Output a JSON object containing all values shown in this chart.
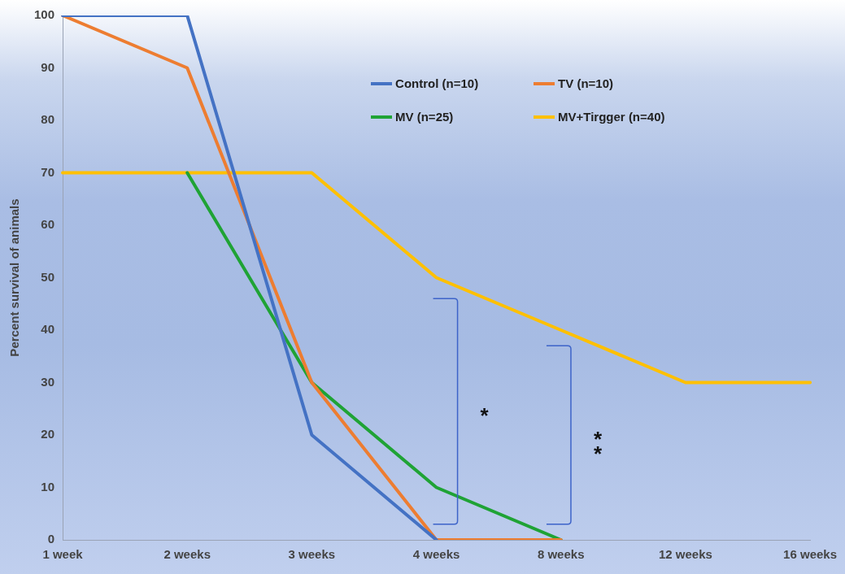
{
  "chart_data": {
    "type": "line",
    "ylabel": "Percent survival of animals",
    "categories": [
      "1 week",
      "2 weeks",
      "3 weeks",
      "4 weeks",
      "8 weeks",
      "12 weeks",
      "16 weeks"
    ],
    "series": [
      {
        "name": "Control (n=10)",
        "color": "#4472c4",
        "values": [
          100,
          100,
          20,
          0,
          null,
          null,
          null
        ]
      },
      {
        "name": "TV (n=10)",
        "color": "#ed7d31",
        "values": [
          100,
          90,
          30,
          0,
          0,
          null,
          null
        ]
      },
      {
        "name": "MV (n=25)",
        "color": "#1fa335",
        "values": [
          null,
          70,
          30,
          10,
          0,
          null,
          null
        ]
      },
      {
        "name": "MV+Tirgger (n=40)",
        "color": "#ffc000",
        "values": [
          70,
          70,
          70,
          50,
          40,
          30,
          30
        ]
      }
    ],
    "ylim": [
      0,
      100
    ],
    "yticks": [
      0,
      10,
      20,
      30,
      40,
      50,
      60,
      70,
      80,
      90,
      100
    ],
    "grid": false,
    "legend": "top right",
    "marker": "none",
    "line_style": "solid",
    "annotations": [
      "*",
      "**"
    ]
  }
}
